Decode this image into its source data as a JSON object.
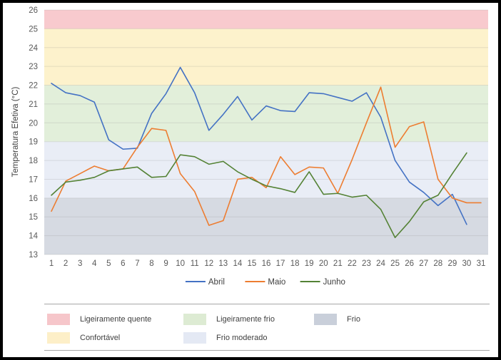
{
  "y_axis_title": "Temperatura Efetiva (°C)",
  "chart_data": {
    "type": "line",
    "x": [
      1,
      2,
      3,
      4,
      5,
      6,
      7,
      8,
      9,
      10,
      11,
      12,
      13,
      14,
      15,
      16,
      17,
      18,
      19,
      20,
      21,
      22,
      23,
      24,
      25,
      26,
      27,
      28,
      29,
      30,
      31
    ],
    "series": [
      {
        "name": "Abril",
        "color": "#4472C4",
        "values": [
          22.1,
          21.6,
          21.45,
          21.1,
          19.1,
          18.6,
          18.65,
          20.5,
          21.55,
          22.95,
          21.6,
          19.6,
          20.45,
          21.4,
          20.15,
          20.9,
          20.65,
          20.6,
          21.6,
          21.55,
          21.35,
          21.15,
          21.6,
          20.3,
          18.0,
          16.85,
          16.3,
          15.6,
          16.2,
          14.6
        ]
      },
      {
        "name": "Maio",
        "color": "#ED7D31",
        "values": [
          15.3,
          16.9,
          17.3,
          17.7,
          17.45,
          17.55,
          18.7,
          19.7,
          19.6,
          17.3,
          16.35,
          14.55,
          14.8,
          17.0,
          17.1,
          16.55,
          18.2,
          17.25,
          17.65,
          17.6,
          16.25,
          18.05,
          20.0,
          21.9,
          18.7,
          19.8,
          20.05,
          17.0,
          16.0,
          15.75,
          15.75
        ]
      },
      {
        "name": "Junho",
        "color": "#548235",
        "values": [
          16.15,
          16.85,
          16.95,
          17.1,
          17.45,
          17.55,
          17.65,
          17.1,
          17.15,
          18.3,
          18.2,
          17.8,
          17.95,
          17.4,
          17.0,
          16.65,
          16.5,
          16.3,
          17.4,
          16.2,
          16.25,
          16.05,
          16.15,
          15.4,
          13.9,
          14.75,
          15.8,
          16.15,
          17.3,
          18.4
        ]
      }
    ],
    "ylabel": "Temperatura Efetiva (°C)",
    "ylim": [
      13,
      26
    ],
    "ytick_step": 1,
    "grid": true,
    "legend_position": "bottom",
    "bands": [
      {
        "label": "Ligeiramente quente",
        "from": 25,
        "to": 26,
        "color": "#F8CACE"
      },
      {
        "label": "Confortável",
        "from": 22,
        "to": 25,
        "color": "#FDF2CC"
      },
      {
        "label": "Ligeiramente frio",
        "from": 19,
        "to": 22,
        "color": "#E2EFDA"
      },
      {
        "label": "Frio moderado",
        "from": 16,
        "to": 19,
        "color": "#E9EDF6"
      },
      {
        "label": "Frio",
        "from": 13,
        "to": 16,
        "color": "#D6DAE2"
      }
    ]
  },
  "zone_legend": {
    "items": [
      {
        "label": "Ligeiramente quente",
        "color": "#F6C6CA",
        "row": 0,
        "col": 0
      },
      {
        "label": "Ligeiramente frio",
        "color": "#DDEBD3",
        "row": 0,
        "col": 1
      },
      {
        "label": "Frio",
        "color": "#C9CFDA",
        "row": 0,
        "col": 2
      },
      {
        "label": "Confortável",
        "color": "#FDEFC8",
        "row": 1,
        "col": 0
      },
      {
        "label": "Frio moderado",
        "color": "#E4E9F4",
        "row": 1,
        "col": 1
      }
    ]
  }
}
